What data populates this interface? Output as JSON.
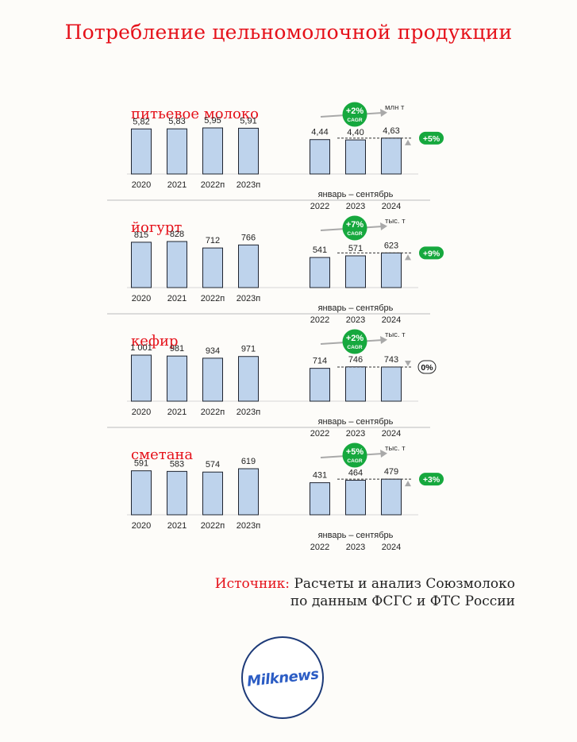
{
  "title": "Потребление цельномолочной продукции",
  "source": {
    "label": "Источник:",
    "line1": "Расчеты и анализ Союзмолоко",
    "line2": "по данным ФСГС и ФТС России"
  },
  "logo_text": "Milknews",
  "period_label": "январь – сентябрь",
  "cagr_label": "CAGR",
  "colors": {
    "bar_fill": "#bed3ec",
    "bar_stroke": "#1f2430",
    "title_red": "#e5111a",
    "badge_green": "#16a83e"
  },
  "chart_data": [
    {
      "type": "bar",
      "title": "питьевое молоко",
      "unit": "млн т",
      "cagr": "+2%",
      "annual": {
        "categories": [
          "2020",
          "2021",
          "2022п",
          "2023п"
        ],
        "values": [
          5.82,
          5.83,
          5.95,
          5.91
        ],
        "labels": [
          "5,82",
          "5,83",
          "5,95",
          "5,91"
        ]
      },
      "period": {
        "categories": [
          "2022",
          "2023",
          "2024"
        ],
        "values": [
          4.44,
          4.4,
          4.63
        ],
        "labels": [
          "4,44",
          "4,40",
          "4,63"
        ]
      },
      "change": "+5%",
      "change_trend": "up"
    },
    {
      "type": "bar",
      "title": "йогурт",
      "unit": "тыс. т",
      "cagr": "+7%",
      "annual": {
        "categories": [
          "2020",
          "2021",
          "2022п",
          "2023п"
        ],
        "values": [
          815,
          828,
          712,
          766
        ],
        "labels": [
          "815",
          "828",
          "712",
          "766"
        ]
      },
      "period": {
        "categories": [
          "2022",
          "2023",
          "2024"
        ],
        "values": [
          541,
          571,
          623
        ],
        "labels": [
          "541",
          "571",
          "623"
        ]
      },
      "change": "+9%",
      "change_trend": "up"
    },
    {
      "type": "bar",
      "title": "кефир",
      "unit": "тыс. т",
      "cagr": "+2%",
      "annual": {
        "categories": [
          "2020",
          "2021",
          "2022п",
          "2023п"
        ],
        "values": [
          1001,
          981,
          934,
          971
        ],
        "labels": [
          "1 001",
          "981",
          "934",
          "971"
        ]
      },
      "period": {
        "categories": [
          "2022",
          "2023",
          "2024"
        ],
        "values": [
          714,
          746,
          743
        ],
        "labels": [
          "714",
          "746",
          "743"
        ]
      },
      "change": "0%",
      "change_trend": "flat"
    },
    {
      "type": "bar",
      "title": "сметана",
      "unit": "тыс. т",
      "cagr": "+5%",
      "annual": {
        "categories": [
          "2020",
          "2021",
          "2022п",
          "2023п"
        ],
        "values": [
          591,
          583,
          574,
          619
        ],
        "labels": [
          "591",
          "583",
          "574",
          "619"
        ]
      },
      "period": {
        "categories": [
          "2022",
          "2023",
          "2024"
        ],
        "values": [
          431,
          464,
          479
        ],
        "labels": [
          "431",
          "464",
          "479"
        ]
      },
      "change": "+3%",
      "change_trend": "up"
    }
  ]
}
